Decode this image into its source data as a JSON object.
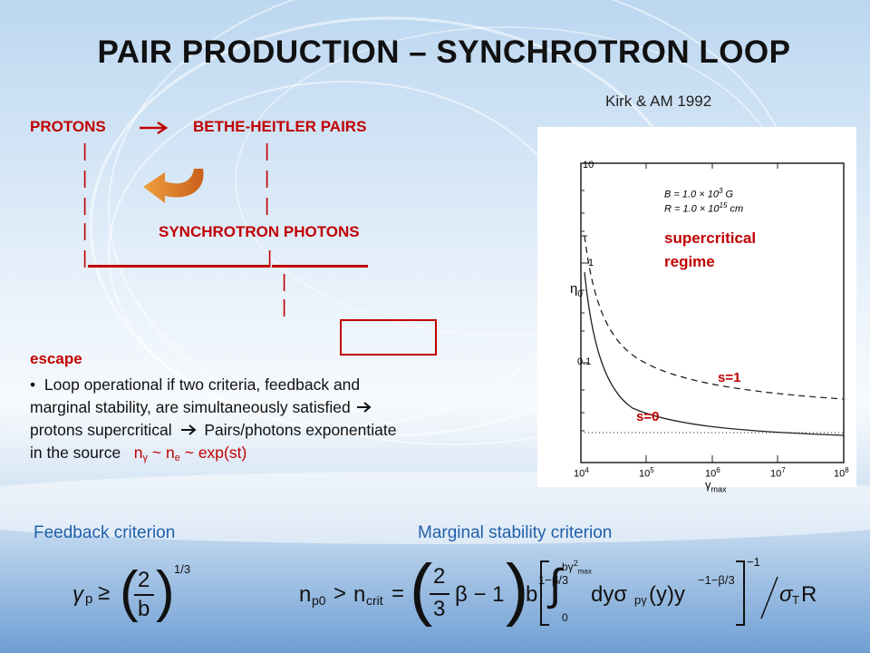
{
  "slide": {
    "title": "PAIR PRODUCTION – SYNCHROTRON LOOP",
    "citation": "Kirk & AM 1992"
  },
  "diagram": {
    "protons": "PROTONS",
    "arrow": "",
    "bethe_heitler": "BETHE-HEITLER PAIRS",
    "bar": "|",
    "synchrotron": "SYNCHROTRON PHOTONS",
    "escape": "escape"
  },
  "text": {
    "bullet": "•",
    "line1": "Loop operational if two criteria, feedback and",
    "line2_pre": "marginal stability, are simultaneously satisfied",
    "line3_a": "protons supercritical",
    "line3_b": "Pairs/photons exponentiate",
    "line4_pre": "in the source",
    "n_gamma": "n",
    "n_gamma_sub": "γ",
    "tilde1": "~ n",
    "n_e_sub": "e",
    "tail": "~ exp(st)"
  },
  "plot": {
    "y_axis_label": "η",
    "y_axis_sub": "0",
    "x_axis_label": "γ",
    "x_axis_sub": "max",
    "y_ticks": [
      "10",
      "1",
      "0.1"
    ],
    "x_ticks": [
      "10",
      "10",
      "10",
      "10",
      "10"
    ],
    "x_tick_exps": [
      "4",
      "5",
      "6",
      "7",
      "8"
    ],
    "legend_B": "B = 1.0 × 10",
    "legend_B_exp": "3",
    "legend_B_unit": "G",
    "legend_R": "R = 1.0 × 10",
    "legend_R_exp": "15",
    "legend_R_unit": "cm",
    "supercritical_1": "supercritical",
    "supercritical_2": "regime",
    "s1": "s=1",
    "s0": "s=0"
  },
  "criteria": {
    "feedback": "Feedback criterion",
    "marginal": "Marginal stability criterion"
  },
  "formula_feedback": {
    "gamma": "γ",
    "p": "p",
    "geq": "≥",
    "num": "2",
    "den": "b",
    "exp": "1/3"
  },
  "formula_marginal": {
    "n": "n",
    "p0": "p0",
    "gt": ">",
    "n2": "n",
    "crit": "crit",
    "eq": "=",
    "two": "2",
    "three": "3",
    "beta_m1": "β − 1",
    "b": "b",
    "bexp": "1−β/3",
    "int_sign": "∫",
    "int_lower": "0",
    "int_upper": "bγ",
    "int_upper_exp": "2",
    "int_upper_sub": "max",
    "integrand": "dyσ",
    "pgamma": "pγ",
    "y_paren": "(y)y",
    "yexp": "−1−β/3",
    "outer_exp": "−1",
    "sigma": "σ",
    "T": "T",
    "R": "R"
  }
}
